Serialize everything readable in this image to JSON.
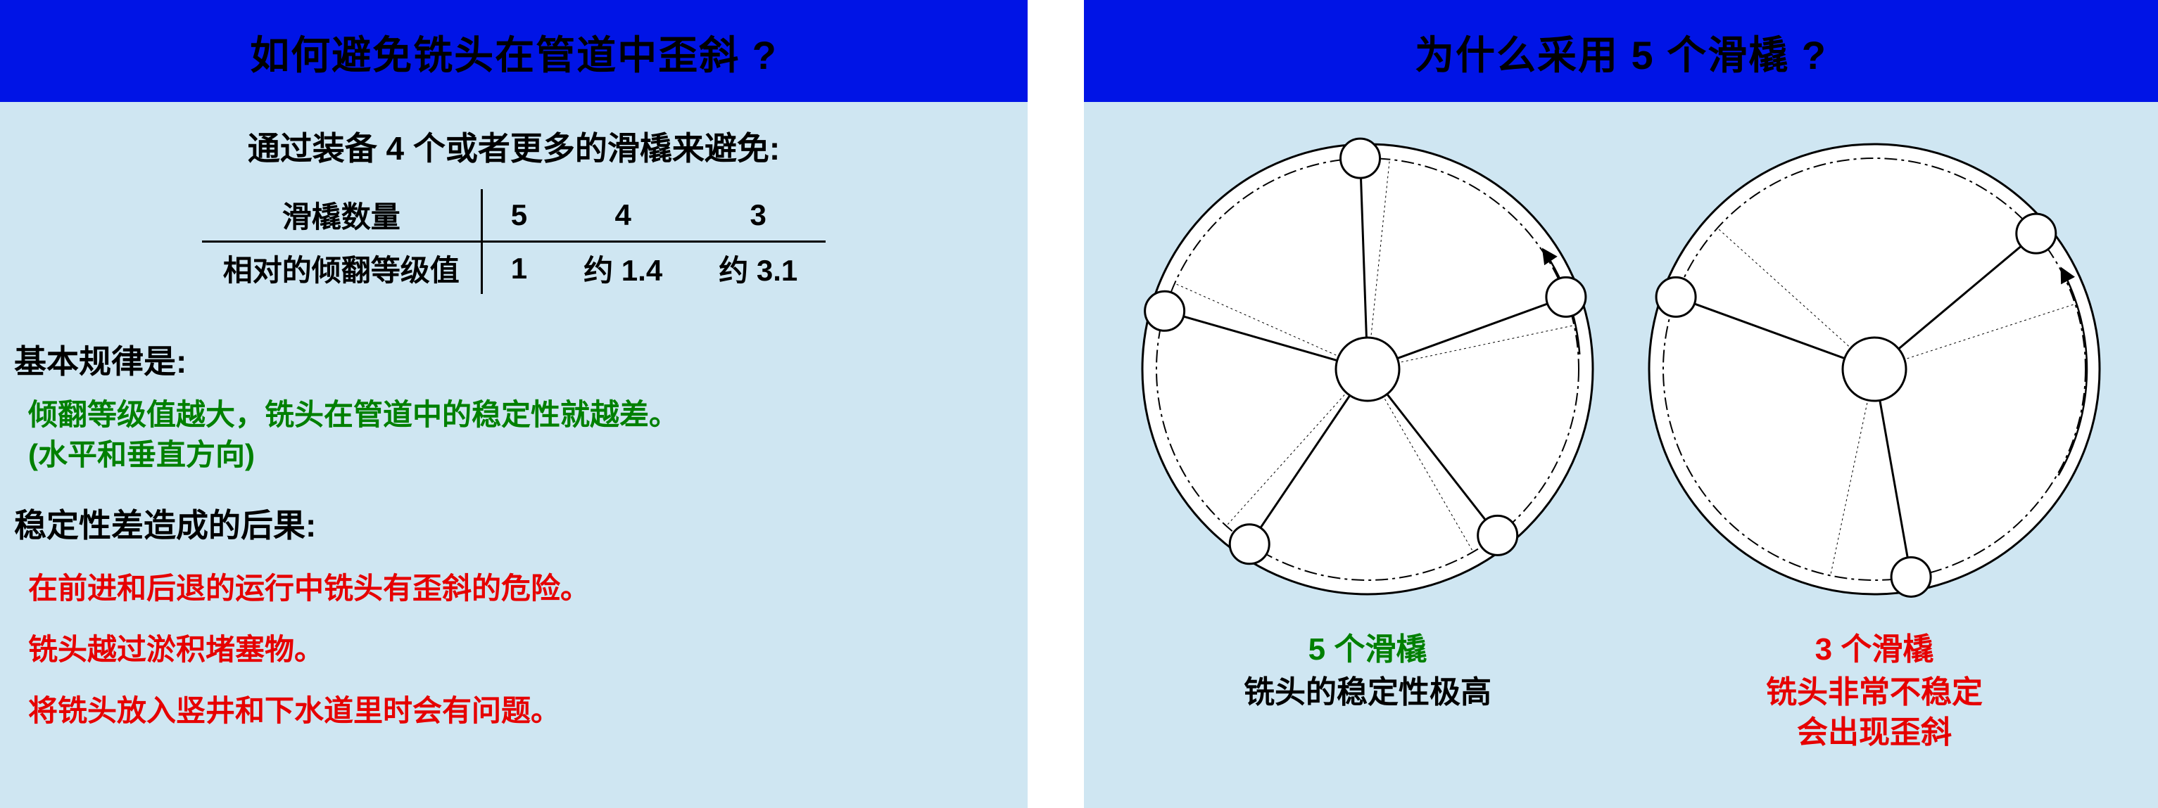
{
  "left": {
    "title": "如何避免铣头在管道中歪斜 ?",
    "subtitle": "通过装备 4 个或者更多的滑橇来避免:",
    "table": {
      "columns": [
        "滑橇数量",
        "5",
        "4",
        "3"
      ],
      "row_label": "相对的倾翻等级值",
      "row_values": [
        "1",
        "约 1.4",
        "约 3.1"
      ]
    },
    "rule_heading": "基本规律是:",
    "rule_line1": "倾翻等级值越大，铣头在管道中的稳定性就越差。",
    "rule_line2": "(水平和垂直方向)",
    "cons_heading": "稳定性差造成的后果:",
    "cons1": "在前进和后退的运行中铣头有歪斜的危险。",
    "cons2": "铣头越过淤积堵塞物。",
    "cons3": "将铣头放入竖井和下水道里时会有问题。",
    "colors": {
      "header_bg": "#0014e6",
      "header_text": "#000000",
      "body_bg": "#cfe6f2",
      "rule_text": "#008000",
      "cons_text": "#e60000",
      "table_border": "#000000"
    }
  },
  "right": {
    "title": "为什么采用 5 个滑橇 ?",
    "diagram5": {
      "type": "radial-skid-diagram",
      "skid_count": 5,
      "outer_radius": 320,
      "dash_radius": 300,
      "hub_radius": 45,
      "skid_radius": 28,
      "skid_angles_deg": [
        70,
        142,
        214,
        286,
        358
      ],
      "tilt_deg": 8,
      "skid_fill": "#ffffff",
      "stroke": "#000000",
      "arrow_arc": {
        "start_deg": 86,
        "end_deg": 56
      }
    },
    "diagram3": {
      "type": "radial-skid-diagram",
      "skid_count": 3,
      "outer_radius": 320,
      "dash_radius": 300,
      "hub_radius": 45,
      "skid_radius": 28,
      "skid_angles_deg": [
        50,
        170,
        290
      ],
      "tilt_deg": 22,
      "skid_fill": "#ffffff",
      "stroke": "#000000",
      "arrow_arc": {
        "start_deg": 120,
        "end_deg": 62
      }
    },
    "caption5_title": "5 个滑橇",
    "caption5_desc": "铣头的稳定性极高",
    "caption3_title": "3 个滑橇",
    "caption3_desc1": "铣头非常不稳定",
    "caption3_desc2": "会出现歪斜",
    "colors": {
      "header_bg": "#0014e6",
      "header_text": "#000000",
      "body_bg": "#cfe6f2",
      "good_text": "#008000",
      "bad_text": "#e60000",
      "stroke": "#000000",
      "fill": "#ffffff"
    }
  }
}
